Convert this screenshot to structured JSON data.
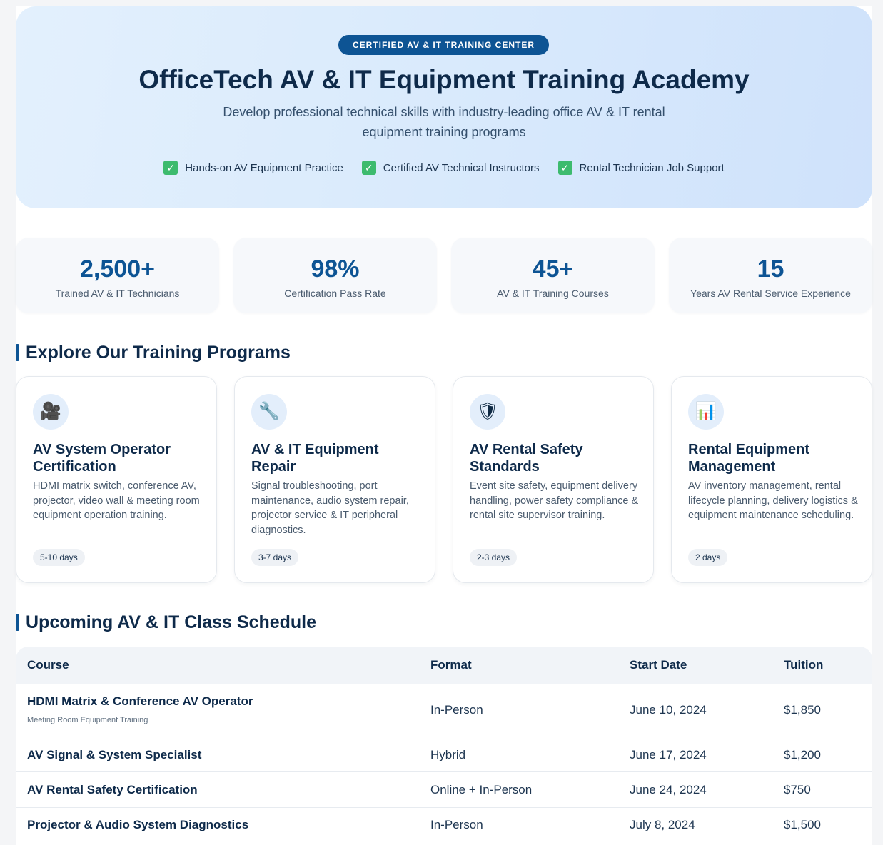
{
  "hero": {
    "badge": "CERTIFIED AV & IT TRAINING CENTER",
    "title": "OfficeTech AV & IT Equipment Training Academy",
    "subtitle": "Develop professional technical skills with industry-leading office AV & IT rental equipment training programs",
    "features": [
      "Hands-on AV Equipment Practice",
      "Certified AV Technical Instructors",
      "Rental Technician Job Support"
    ],
    "check_glyph": "✓"
  },
  "stats": [
    {
      "value": "2,500+",
      "label": "Trained AV & IT Technicians"
    },
    {
      "value": "98%",
      "label": "Certification Pass Rate"
    },
    {
      "value": "45+",
      "label": "AV & IT Training Courses"
    },
    {
      "value": "15",
      "label": "Years AV Rental Service Experience"
    }
  ],
  "programs_section": {
    "title": "Explore Our Training Programs"
  },
  "programs": [
    {
      "icon": "🎥",
      "icon_name": "video-camera-icon",
      "title": "AV System Operator Certification",
      "description": "HDMI matrix switch, conference AV, projector, video wall & meeting room equipment operation training.",
      "duration": "5-10 days"
    },
    {
      "icon": "🔧",
      "icon_name": "wrench-icon",
      "title": "AV & IT Equipment Repair",
      "description": "Signal troubleshooting, port maintenance, audio system repair, projector service & IT peripheral diagnostics.",
      "duration": "3-7 days"
    },
    {
      "icon": "🛡",
      "icon_name": "shield-icon",
      "title": "AV Rental Safety Standards",
      "description": "Event site safety, equipment delivery handling, power safety compliance & rental site supervisor training.",
      "duration": "2-3 days"
    },
    {
      "icon": "📊",
      "icon_name": "bar-chart-icon",
      "title": "Rental Equipment Management",
      "description": "AV inventory management, rental lifecycle planning, delivery logistics & equipment maintenance scheduling.",
      "duration": "2 days"
    }
  ],
  "schedule_section": {
    "title": "Upcoming AV & IT Class Schedule"
  },
  "schedule": {
    "headers": [
      "Course",
      "Format",
      "Start Date",
      "Tuition"
    ],
    "rows": [
      {
        "course": "HDMI Matrix & Conference AV Operator",
        "sub": "Meeting Room Equipment Training",
        "format": "In-Person",
        "start": "June 10, 2024",
        "tuition": "$1,850"
      },
      {
        "course": "AV Signal & System Specialist",
        "sub": "",
        "format": "Hybrid",
        "start": "June 17, 2024",
        "tuition": "$1,200"
      },
      {
        "course": "AV Rental Safety Certification",
        "sub": "",
        "format": "Online + In-Person",
        "start": "June 24, 2024",
        "tuition": "$750"
      },
      {
        "course": "Projector & Audio System Diagnostics",
        "sub": "",
        "format": "In-Person",
        "start": "July 8, 2024",
        "tuition": "$1,500"
      }
    ]
  }
}
